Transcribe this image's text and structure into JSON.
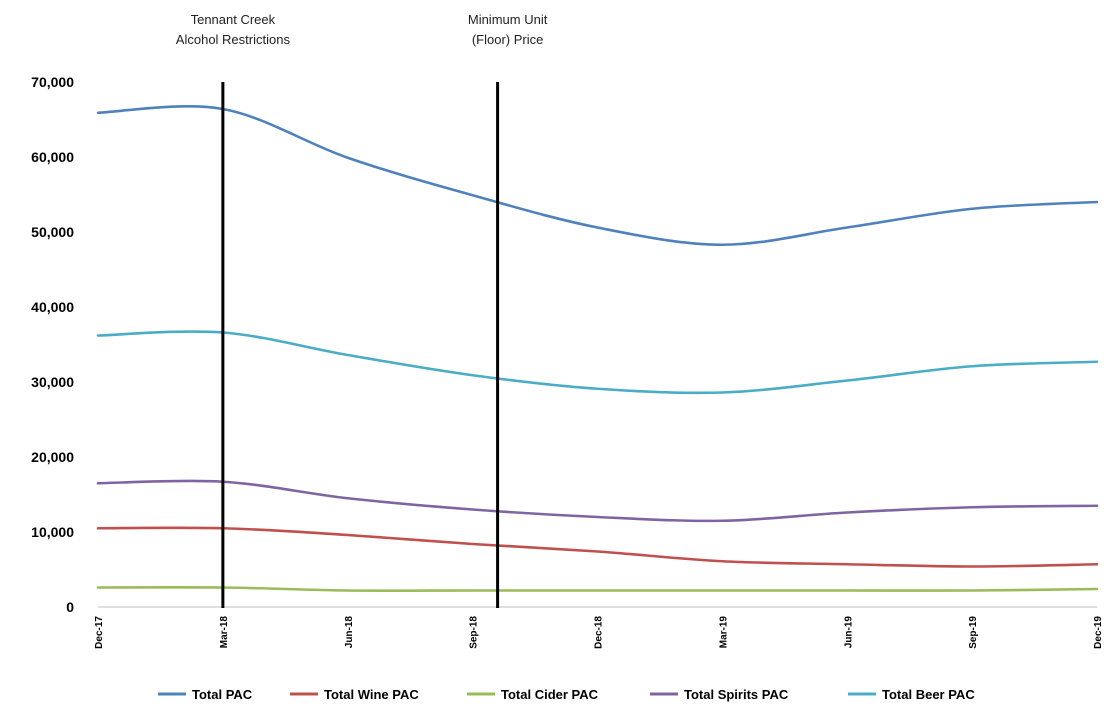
{
  "chart_data": {
    "type": "line",
    "categories": [
      "Dec-17",
      "Mar-18",
      "Jun-18",
      "Sep-18",
      "Dec-18",
      "Mar-19",
      "Jun-19",
      "Sep-19",
      "Dec-19"
    ],
    "ylim": [
      0,
      70000
    ],
    "yticks": [
      "0",
      "10,000",
      "20,000",
      "30,000",
      "40,000",
      "50,000",
      "60,000",
      "70,000"
    ],
    "ytick_values": [
      0,
      10000,
      20000,
      30000,
      40000,
      50000,
      60000,
      70000
    ],
    "grid": false,
    "legend_position": "bottom",
    "series": [
      {
        "name": "Total PAC",
        "color": "#4F81BD",
        "values": [
          65900,
          66400,
          59900,
          54900,
          50600,
          48300,
          50600,
          53100,
          54000
        ]
      },
      {
        "name": "Total Wine PAC",
        "color": "#C0504D",
        "values": [
          10500,
          10500,
          9600,
          8400,
          7400,
          6100,
          5700,
          5400,
          5700
        ]
      },
      {
        "name": "Total Cider PAC",
        "color": "#9BBB59",
        "values": [
          2600,
          2600,
          2200,
          2200,
          2200,
          2200,
          2200,
          2200,
          2400
        ]
      },
      {
        "name": "Total Spirits PAC",
        "color": "#8064A2",
        "values": [
          16500,
          16700,
          14500,
          13000,
          12000,
          11500,
          12600,
          13300,
          13500
        ]
      },
      {
        "name": "Total Beer PAC",
        "color": "#4BACC6",
        "values": [
          36200,
          36600,
          33600,
          30900,
          29100,
          28600,
          30200,
          32100,
          32700
        ]
      }
    ],
    "vlines": [
      {
        "label_lines": [
          "Tennant Creek",
          "Alcohol Restrictions"
        ],
        "x_index": 1.0
      },
      {
        "label_lines": [
          "Minimum Unit",
          "(Floor) Price"
        ],
        "x_index": 3.2
      }
    ]
  }
}
